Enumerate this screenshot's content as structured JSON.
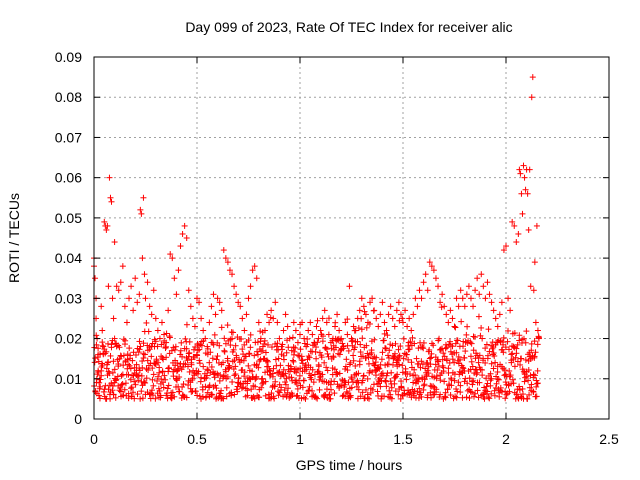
{
  "chart_data": {
    "type": "scatter",
    "title": "Day 099 of 2023, Rate Of TEC Index for receiver alic",
    "xlabel": "GPS time / hours",
    "ylabel": "ROTI / TECUs",
    "xlim": [
      0,
      2.5
    ],
    "ylim": [
      0,
      0.09
    ],
    "x_ticks": [
      0,
      0.5,
      1,
      1.5,
      2,
      2.5
    ],
    "x_tick_labels": [
      "0",
      "0.5",
      "1",
      "1.5",
      "2",
      "2.5"
    ],
    "y_ticks": [
      0,
      0.01,
      0.02,
      0.03,
      0.04,
      0.05,
      0.06,
      0.07,
      0.08,
      0.09
    ],
    "y_tick_labels": [
      "0",
      "0.01",
      "0.02",
      "0.03",
      "0.04",
      "0.05",
      "0.06",
      "0.07",
      "0.08",
      "0.09"
    ],
    "grid": true,
    "marker": "+",
    "color": "#ff0000",
    "series": [
      {
        "points": [
          [
            0.0,
            0.04
          ],
          [
            0.0,
            0.038
          ],
          [
            0.005,
            0.035
          ],
          [
            0.01,
            0.03
          ],
          [
            0.01,
            0.025
          ],
          [
            0.015,
            0.02
          ],
          [
            0.02,
            0.016
          ],
          [
            0.02,
            0.012
          ],
          [
            0.025,
            0.009
          ],
          [
            0.03,
            0.008
          ],
          [
            0.035,
            0.028
          ],
          [
            0.04,
            0.022
          ],
          [
            0.045,
            0.018
          ],
          [
            0.05,
            0.049
          ],
          [
            0.055,
            0.048
          ],
          [
            0.06,
            0.047
          ],
          [
            0.065,
            0.048
          ],
          [
            0.07,
            0.033
          ],
          [
            0.075,
            0.06
          ],
          [
            0.08,
            0.055
          ],
          [
            0.085,
            0.054
          ],
          [
            0.09,
            0.03
          ],
          [
            0.095,
            0.025
          ],
          [
            0.1,
            0.044
          ],
          [
            0.1,
            0.02
          ],
          [
            0.11,
            0.033
          ],
          [
            0.12,
            0.032
          ],
          [
            0.13,
            0.034
          ],
          [
            0.14,
            0.038
          ],
          [
            0.15,
            0.028
          ],
          [
            0.16,
            0.024
          ],
          [
            0.17,
            0.03
          ],
          [
            0.18,
            0.033
          ],
          [
            0.19,
            0.027
          ],
          [
            0.2,
            0.035
          ],
          [
            0.21,
            0.029
          ],
          [
            0.22,
            0.031
          ],
          [
            0.225,
            0.052
          ],
          [
            0.23,
            0.051
          ],
          [
            0.235,
            0.04
          ],
          [
            0.24,
            0.055
          ],
          [
            0.245,
            0.036
          ],
          [
            0.25,
            0.03
          ],
          [
            0.26,
            0.034
          ],
          [
            0.27,
            0.028
          ],
          [
            0.28,
            0.026
          ],
          [
            0.29,
            0.032
          ],
          [
            0.3,
            0.025
          ],
          [
            0.31,
            0.022
          ],
          [
            0.32,
            0.02
          ],
          [
            0.33,
            0.024
          ],
          [
            0.34,
            0.021
          ],
          [
            0.35,
            0.019
          ],
          [
            0.36,
            0.027
          ],
          [
            0.37,
            0.041
          ],
          [
            0.38,
            0.04
          ],
          [
            0.39,
            0.035
          ],
          [
            0.4,
            0.031
          ],
          [
            0.41,
            0.037
          ],
          [
            0.42,
            0.043
          ],
          [
            0.43,
            0.046
          ],
          [
            0.44,
            0.048
          ],
          [
            0.45,
            0.045
          ],
          [
            0.46,
            0.032
          ],
          [
            0.47,
            0.028
          ],
          [
            0.48,
            0.025
          ],
          [
            0.49,
            0.023
          ],
          [
            0.5,
            0.03
          ],
          [
            0.51,
            0.029
          ],
          [
            0.52,
            0.025
          ],
          [
            0.53,
            0.022
          ],
          [
            0.54,
            0.02
          ],
          [
            0.55,
            0.018
          ],
          [
            0.56,
            0.024
          ],
          [
            0.57,
            0.028
          ],
          [
            0.58,
            0.031
          ],
          [
            0.59,
            0.026
          ],
          [
            0.6,
            0.03
          ],
          [
            0.61,
            0.029
          ],
          [
            0.62,
            0.027
          ],
          [
            0.63,
            0.042
          ],
          [
            0.64,
            0.04
          ],
          [
            0.65,
            0.039
          ],
          [
            0.66,
            0.037
          ],
          [
            0.67,
            0.036
          ],
          [
            0.68,
            0.033
          ],
          [
            0.69,
            0.031
          ],
          [
            0.7,
            0.029
          ],
          [
            0.71,
            0.028
          ],
          [
            0.72,
            0.025
          ],
          [
            0.73,
            0.022
          ],
          [
            0.74,
            0.026
          ],
          [
            0.75,
            0.03
          ],
          [
            0.76,
            0.033
          ],
          [
            0.77,
            0.037
          ],
          [
            0.78,
            0.038
          ],
          [
            0.79,
            0.035
          ],
          [
            0.8,
            0.024
          ],
          [
            0.81,
            0.02
          ],
          [
            0.82,
            0.018
          ],
          [
            0.83,
            0.022
          ],
          [
            0.84,
            0.026
          ],
          [
            0.85,
            0.024
          ],
          [
            0.86,
            0.027
          ],
          [
            0.87,
            0.025
          ],
          [
            0.88,
            0.029
          ],
          [
            0.89,
            0.024
          ],
          [
            0.9,
            0.02
          ],
          [
            0.91,
            0.018
          ],
          [
            0.92,
            0.022
          ],
          [
            0.93,
            0.026
          ],
          [
            0.94,
            0.023
          ],
          [
            0.95,
            0.02
          ],
          [
            0.96,
            0.017
          ],
          [
            0.97,
            0.024
          ],
          [
            0.98,
            0.022
          ],
          [
            0.99,
            0.019
          ],
          [
            1.0,
            0.021
          ],
          [
            1.01,
            0.024
          ],
          [
            1.02,
            0.02
          ],
          [
            1.03,
            0.018
          ],
          [
            1.04,
            0.022
          ],
          [
            1.05,
            0.024
          ],
          [
            1.06,
            0.021
          ],
          [
            1.07,
            0.019
          ],
          [
            1.08,
            0.023
          ],
          [
            1.09,
            0.02
          ],
          [
            1.1,
            0.022
          ],
          [
            1.11,
            0.025
          ],
          [
            1.12,
            0.027
          ],
          [
            1.13,
            0.024
          ],
          [
            1.14,
            0.021
          ],
          [
            1.15,
            0.019
          ],
          [
            1.16,
            0.02
          ],
          [
            1.17,
            0.023
          ],
          [
            1.18,
            0.026
          ],
          [
            1.19,
            0.022
          ],
          [
            1.2,
            0.02
          ],
          [
            1.21,
            0.018
          ],
          [
            1.22,
            0.024
          ],
          [
            1.23,
            0.021
          ],
          [
            1.24,
            0.033
          ],
          [
            1.25,
            0.02
          ],
          [
            1.26,
            0.023
          ],
          [
            1.27,
            0.022
          ],
          [
            1.28,
            0.025
          ],
          [
            1.29,
            0.027
          ],
          [
            1.3,
            0.03
          ],
          [
            1.31,
            0.028
          ],
          [
            1.32,
            0.026
          ],
          [
            1.33,
            0.024
          ],
          [
            1.34,
            0.029
          ],
          [
            1.35,
            0.03
          ],
          [
            1.36,
            0.027
          ],
          [
            1.37,
            0.025
          ],
          [
            1.38,
            0.023
          ],
          [
            1.39,
            0.026
          ],
          [
            1.4,
            0.029
          ],
          [
            1.41,
            0.024
          ],
          [
            1.42,
            0.022
          ],
          [
            1.43,
            0.026
          ],
          [
            1.44,
            0.028
          ],
          [
            1.45,
            0.025
          ],
          [
            1.46,
            0.023
          ],
          [
            1.47,
            0.027
          ],
          [
            1.48,
            0.029
          ],
          [
            1.49,
            0.026
          ],
          [
            1.5,
            0.024
          ],
          [
            1.51,
            0.027
          ],
          [
            1.52,
            0.023
          ],
          [
            1.53,
            0.025
          ],
          [
            1.54,
            0.022
          ],
          [
            1.55,
            0.026
          ],
          [
            1.56,
            0.03
          ],
          [
            1.57,
            0.028
          ],
          [
            1.58,
            0.032
          ],
          [
            1.59,
            0.03
          ],
          [
            1.6,
            0.034
          ],
          [
            1.61,
            0.036
          ],
          [
            1.62,
            0.032
          ],
          [
            1.63,
            0.039
          ],
          [
            1.64,
            0.038
          ],
          [
            1.65,
            0.037
          ],
          [
            1.66,
            0.035
          ],
          [
            1.67,
            0.033
          ],
          [
            1.68,
            0.029
          ],
          [
            1.69,
            0.031
          ],
          [
            1.7,
            0.028
          ],
          [
            1.71,
            0.026
          ],
          [
            1.72,
            0.024
          ],
          [
            1.73,
            0.027
          ],
          [
            1.74,
            0.025
          ],
          [
            1.75,
            0.023
          ],
          [
            1.76,
            0.03
          ],
          [
            1.77,
            0.028
          ],
          [
            1.78,
            0.032
          ],
          [
            1.79,
            0.03
          ],
          [
            1.8,
            0.028
          ],
          [
            1.81,
            0.031
          ],
          [
            1.82,
            0.033
          ],
          [
            1.83,
            0.03
          ],
          [
            1.84,
            0.028
          ],
          [
            1.85,
            0.032
          ],
          [
            1.86,
            0.035
          ],
          [
            1.87,
            0.031
          ],
          [
            1.88,
            0.036
          ],
          [
            1.89,
            0.033
          ],
          [
            1.9,
            0.03
          ],
          [
            1.91,
            0.034
          ],
          [
            1.92,
            0.031
          ],
          [
            1.93,
            0.029
          ],
          [
            1.94,
            0.027
          ],
          [
            1.95,
            0.025
          ],
          [
            1.96,
            0.023
          ],
          [
            1.97,
            0.026
          ],
          [
            1.98,
            0.029
          ],
          [
            1.99,
            0.042
          ],
          [
            2.0,
            0.043
          ],
          [
            2.01,
            0.03
          ],
          [
            2.02,
            0.027
          ],
          [
            2.03,
            0.049
          ],
          [
            2.04,
            0.048
          ],
          [
            2.05,
            0.044
          ],
          [
            2.06,
            0.046
          ],
          [
            2.065,
            0.062
          ],
          [
            2.07,
            0.061
          ],
          [
            2.075,
            0.056
          ],
          [
            2.08,
            0.051
          ],
          [
            2.085,
            0.063
          ],
          [
            2.09,
            0.06
          ],
          [
            2.095,
            0.057
          ],
          [
            2.1,
            0.062
          ],
          [
            2.105,
            0.056
          ],
          [
            2.11,
            0.047
          ],
          [
            2.115,
            0.062
          ],
          [
            2.12,
            0.033
          ],
          [
            2.125,
            0.08
          ],
          [
            2.13,
            0.085
          ],
          [
            2.135,
            0.032
          ],
          [
            2.14,
            0.039
          ],
          [
            2.145,
            0.024
          ],
          [
            2.15,
            0.048
          ],
          [
            2.155,
            0.022
          ],
          [
            2.16,
            0.02
          ]
        ],
        "dense_band": {
          "x_range": [
            0,
            2.16
          ],
          "y_min": 0.005,
          "y_max": 0.02
        }
      }
    ]
  }
}
